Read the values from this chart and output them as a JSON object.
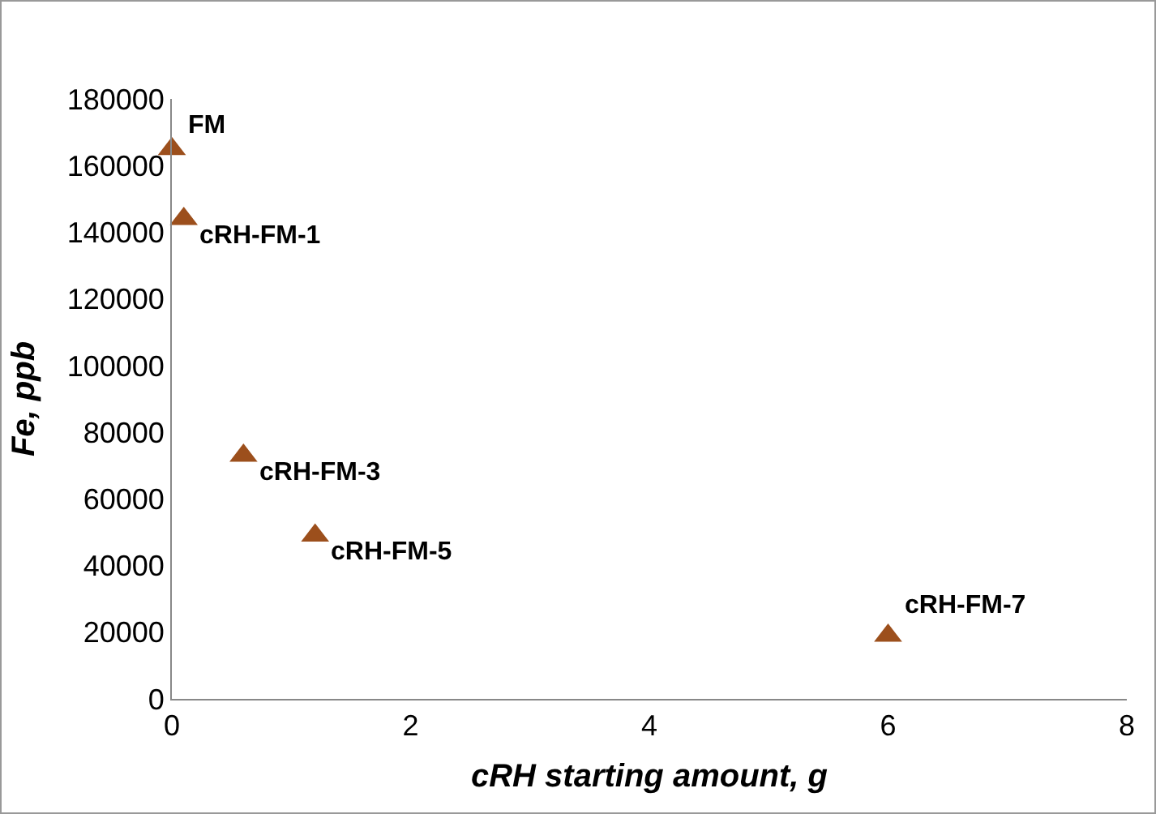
{
  "chart_data": {
    "type": "scatter",
    "xlabel": "cRH starting amount, g",
    "ylabel": "Fe, ppb",
    "x": [
      0,
      0.1,
      0.6,
      1.2,
      6
    ],
    "values": [
      165000,
      144000,
      73000,
      49000,
      19000
    ],
    "color": "#9c4f1c",
    "marker": "triangle",
    "grid": false,
    "legend": false,
    "xlim": [
      0,
      8
    ],
    "xticks": [
      0,
      2,
      4,
      6,
      8
    ],
    "ylim": [
      0,
      180000
    ],
    "yticks": [
      0,
      20000,
      40000,
      60000,
      80000,
      100000,
      120000,
      140000,
      160000,
      180000
    ],
    "annotations": [
      {
        "text": "FM",
        "x": 0,
        "y": 165000
      },
      {
        "text": "cRH-FM-1",
        "x": 0.1,
        "y": 144000
      },
      {
        "text": "cRH-FM-3",
        "x": 0.6,
        "y": 73000
      },
      {
        "text": "cRH-FM-5",
        "x": 1.2,
        "y": 49000
      },
      {
        "text": "cRH-FM-7",
        "x": 6,
        "y": 19000
      }
    ]
  }
}
